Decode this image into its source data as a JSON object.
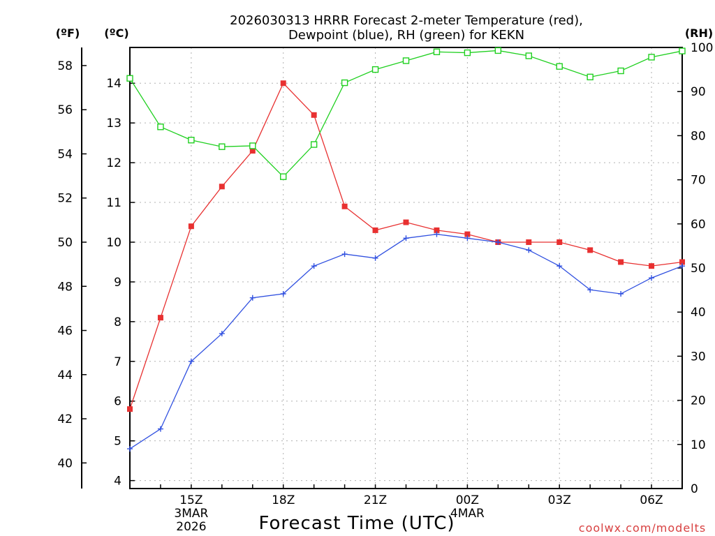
{
  "chart_data": {
    "type": "line",
    "title_line1": "2026030313 HRRR Forecast 2-meter Temperature (red),",
    "title_line2": "Dewpoint (blue), RH (green) for KEKN",
    "xlabel": "Forecast Time (UTC)",
    "credit": "coolwx.com/modelts",
    "unit_labels": {
      "fahrenheit": "(ºF)",
      "celsius": "(ºC)",
      "rh": "(RH)"
    },
    "x": [
      13,
      14,
      15,
      16,
      17,
      18,
      19,
      20,
      21,
      22,
      23,
      24,
      25,
      26,
      27,
      28,
      29,
      30,
      31
    ],
    "xlim": [
      13,
      31
    ],
    "x_ticks": [
      {
        "hour": 15,
        "label": "15Z",
        "sub1": "3MAR",
        "sub2": "2026"
      },
      {
        "hour": 18,
        "label": "18Z",
        "sub1": "",
        "sub2": ""
      },
      {
        "hour": 21,
        "label": "21Z",
        "sub1": "",
        "sub2": ""
      },
      {
        "hour": 24,
        "label": "00Z",
        "sub1": "4MAR",
        "sub2": ""
      },
      {
        "hour": 27,
        "label": "03Z",
        "sub1": "",
        "sub2": ""
      },
      {
        "hour": 30,
        "label": "06Z",
        "sub1": "",
        "sub2": ""
      }
    ],
    "celsius_axis": {
      "ylim": [
        3.8,
        14.9
      ],
      "ticks": [
        4,
        5,
        6,
        7,
        8,
        9,
        10,
        11,
        12,
        13,
        14
      ]
    },
    "fahrenheit_axis": {
      "ticks": [
        40,
        42,
        44,
        46,
        48,
        50,
        52,
        54,
        56,
        58
      ]
    },
    "rh_axis": {
      "ylim": [
        0,
        100
      ],
      "ticks": [
        0,
        10,
        20,
        30,
        40,
        50,
        60,
        70,
        80,
        90,
        100
      ]
    },
    "series": [
      {
        "name": "Temperature",
        "unit": "C",
        "color": "#e83030",
        "marker": "filled-square",
        "values": [
          5.8,
          8.1,
          10.4,
          11.4,
          12.3,
          14.0,
          13.2,
          10.9,
          10.3,
          10.5,
          10.3,
          10.2,
          10.0,
          10.0,
          10.0,
          9.8,
          9.5,
          9.4,
          9.5
        ]
      },
      {
        "name": "Dewpoint",
        "unit": "C",
        "color": "#3050e0",
        "marker": "plus",
        "values": [
          4.8,
          5.3,
          7.0,
          7.7,
          8.6,
          8.7,
          9.4,
          9.7,
          9.6,
          10.1,
          10.2,
          10.1,
          10.0,
          9.8,
          9.4,
          8.8,
          8.7,
          9.1,
          9.4
        ]
      },
      {
        "name": "RH",
        "unit": "%",
        "color": "#20d020",
        "marker": "open-square",
        "values": [
          93,
          82,
          79,
          77.5,
          77.7,
          70.7,
          78,
          92,
          95,
          97,
          99,
          98.8,
          99.3,
          98.1,
          95.7,
          93.3,
          94.7,
          97.8,
          99.2
        ]
      }
    ]
  }
}
